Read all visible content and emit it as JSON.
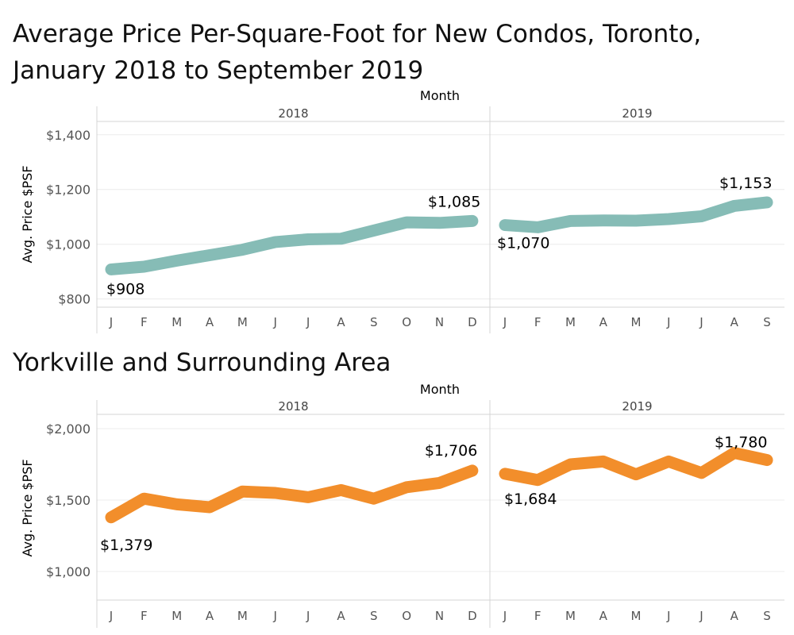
{
  "titles": {
    "top": "Average Price Per-Square-Foot for New Condos, Toronto, January 2018 to September 2019",
    "bottom": "Yorkville and Surrounding Area"
  },
  "colors": {
    "toronto": "#86bcb6",
    "yorkville": "#f28e2b",
    "grid": "#ececec",
    "axis": "#d4d4d4"
  },
  "chart_data": [
    {
      "type": "line",
      "color": "#86bcb6",
      "column_header": "Month",
      "panels": [
        "2018",
        "2019"
      ],
      "ylabel": "Avg. Price $PSF",
      "ylim": [
        770,
        1440
      ],
      "yticks": [
        800,
        1000,
        1200,
        1400
      ],
      "ytick_labels": [
        "$800",
        "$1,000",
        "$1,200",
        "$1,400"
      ],
      "grid": true,
      "series": [
        {
          "panel": "2018",
          "x": [
            "J",
            "F",
            "M",
            "A",
            "M",
            "J",
            "J",
            "A",
            "S",
            "O",
            "N",
            "D"
          ],
          "values": [
            908,
            918,
            940,
            960,
            980,
            1008,
            1018,
            1020,
            1050,
            1080,
            1078,
            1085
          ]
        },
        {
          "panel": "2019",
          "x": [
            "J",
            "F",
            "M",
            "A",
            "M",
            "J",
            "J",
            "A",
            "S"
          ],
          "values": [
            1070,
            1062,
            1085,
            1087,
            1086,
            1092,
            1102,
            1140,
            1153
          ]
        }
      ],
      "annotations": [
        {
          "panel": "2018",
          "index": 0,
          "text": "$908"
        },
        {
          "panel": "2018",
          "index": 11,
          "text": "$1,085"
        },
        {
          "panel": "2019",
          "index": 0,
          "text": "$1,070"
        },
        {
          "panel": "2019",
          "index": 8,
          "text": "$1,153"
        }
      ]
    },
    {
      "type": "line",
      "color": "#f28e2b",
      "column_header": "Month",
      "panels": [
        "2018",
        "2019"
      ],
      "ylabel": "Avg. Price $PSF",
      "ylim": [
        800,
        2100
      ],
      "yticks": [
        1000,
        1500,
        2000
      ],
      "ytick_labels": [
        "$1,000",
        "$1,500",
        "$2,000"
      ],
      "grid": true,
      "series": [
        {
          "panel": "2018",
          "x": [
            "J",
            "F",
            "M",
            "A",
            "M",
            "J",
            "J",
            "A",
            "S",
            "O",
            "N",
            "D"
          ],
          "values": [
            1379,
            1510,
            1470,
            1450,
            1560,
            1550,
            1520,
            1570,
            1510,
            1590,
            1620,
            1706
          ]
        },
        {
          "panel": "2019",
          "x": [
            "J",
            "F",
            "M",
            "A",
            "M",
            "J",
            "J",
            "A",
            "S"
          ],
          "values": [
            1684,
            1640,
            1750,
            1770,
            1680,
            1770,
            1690,
            1830,
            1780
          ]
        }
      ],
      "annotations": [
        {
          "panel": "2018",
          "index": 0,
          "text": "$1,379"
        },
        {
          "panel": "2018",
          "index": 11,
          "text": "$1,706"
        },
        {
          "panel": "2019",
          "index": 0,
          "text": "$1,684"
        },
        {
          "panel": "2019",
          "index": 8,
          "text": "$1,780"
        }
      ]
    }
  ]
}
